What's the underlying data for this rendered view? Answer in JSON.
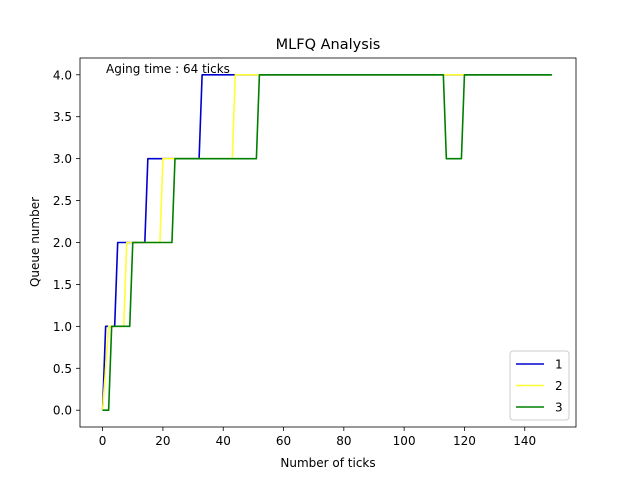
{
  "chart_data": {
    "type": "line",
    "title": "MLFQ Analysis",
    "xlabel": "Number of ticks",
    "ylabel": "Queue number",
    "annotation": "Aging time : 64 ticks",
    "xlim": [
      -7.5,
      157
    ],
    "ylim": [
      -0.2,
      4.2
    ],
    "xticks": [
      0,
      20,
      40,
      60,
      80,
      100,
      120,
      140
    ],
    "yticks": [
      0.0,
      0.5,
      1.0,
      1.5,
      2.0,
      2.5,
      3.0,
      3.5,
      4.0
    ],
    "ytick_labels": [
      "0.0",
      "0.5",
      "1.0",
      "1.5",
      "2.0",
      "2.5",
      "3.0",
      "3.5",
      "4.0"
    ],
    "grid": false,
    "legend_position": "lower-right",
    "series": [
      {
        "name": "1",
        "color": "#0000cd",
        "x": [
          0,
          1,
          4,
          5,
          14,
          15,
          32,
          33,
          149
        ],
        "y": [
          0,
          1,
          1,
          2,
          2,
          3,
          3,
          4,
          4
        ]
      },
      {
        "name": "2",
        "color": "#ffff33",
        "x": [
          0,
          2,
          7,
          8,
          19,
          20,
          43,
          44,
          149
        ],
        "y": [
          0,
          1,
          1,
          2,
          2,
          3,
          3,
          4,
          4
        ]
      },
      {
        "name": "3",
        "color": "#008000",
        "x": [
          0,
          2,
          3,
          9,
          10,
          23,
          24,
          51,
          52,
          113,
          114,
          119,
          120,
          149
        ],
        "y": [
          0,
          0,
          1,
          1,
          2,
          2,
          3,
          3,
          4,
          4,
          3,
          3,
          4,
          4
        ]
      }
    ]
  }
}
